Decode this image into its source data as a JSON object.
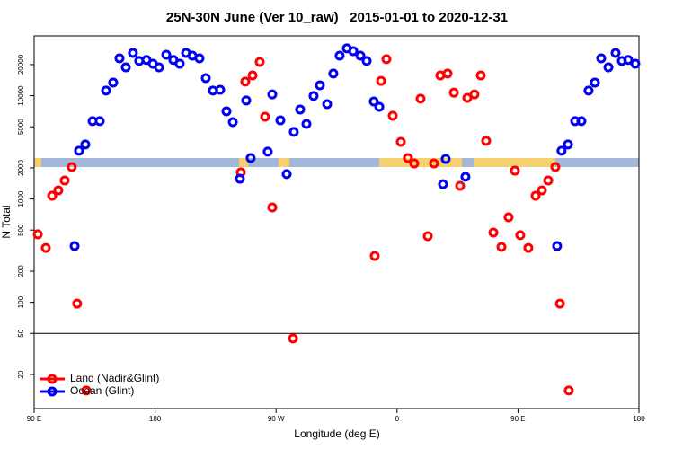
{
  "chart_data": {
    "type": "scatter",
    "title": "25N-30N June (Ver 10_raw)   2015-01-01 to 2020-12-31",
    "x_label": "Longitude (deg E)",
    "y_label": "N Total",
    "log_y": true,
    "xlim": [
      90,
      540
    ],
    "ylim": [
      9.35,
      37900
    ],
    "xticks": [
      {
        "value": 90,
        "label": "90 E"
      },
      180,
      {
        "value": 270,
        "label": "90 W"
      },
      {
        "value": 360,
        "label": "0"
      },
      {
        "value": 450,
        "label": "90 E"
      },
      {
        "value": 540,
        "label": "180"
      }
    ],
    "yticks": [
      20,
      50,
      100,
      200,
      500,
      1000,
      2000,
      5000,
      10000,
      20000
    ],
    "reference_line": 50,
    "legend": "bottom-left",
    "series": [
      {
        "name": "Land (Nadir&Glint)",
        "color": "#ff0000",
        "x": [
          92.7,
          98.7,
          103.4,
          108,
          112.7,
          118,
          122,
          128.8,
          243.8,
          247.1,
          252.5,
          257.8,
          261.8,
          267.2,
          282.6,
          343.4,
          348.1,
          352.1,
          356.8,
          362.8,
          368.1,
          372.8,
          377.5,
          382.9,
          387.5,
          392.2,
          397.6,
          402.3,
          406.9,
          412.3,
          417.6,
          422.3,
          426.3,
          431.7,
          437.7,
          443,
          447.7,
          451.7,
          457.7,
          463.1,
          467.8,
          472.5,
          477.8,
          481.2,
          487.8
        ],
        "values": [
          455,
          336,
          1075,
          1213,
          1510,
          2040,
          97,
          14,
          1810,
          13700,
          15700,
          21200,
          6260,
          828,
          44.6,
          281,
          13900,
          22600,
          6390,
          3570,
          2490,
          2210,
          9350,
          437,
          2210,
          15700,
          16400,
          10700,
          1340,
          9530,
          10300,
          15700,
          3650,
          473,
          343,
          665,
          1880,
          446,
          336,
          1075,
          1213,
          1510,
          2040,
          97,
          14
        ]
      },
      {
        "name": "Ocean (Glint)",
        "color": "#0000ee",
        "x": [
          120.1,
          123.4,
          128.1,
          133.5,
          138.8,
          143.5,
          148.8,
          153.5,
          158.2,
          163.5,
          168.2,
          173.6,
          178.3,
          182.9,
          188.3,
          193.6,
          198.3,
          203,
          207.7,
          213,
          217.7,
          223,
          228.4,
          233.1,
          237.8,
          243.1,
          247.8,
          251.1,
          263.8,
          267.2,
          273.2,
          277.9,
          283.2,
          287.9,
          292.6,
          297.9,
          302.6,
          308,
          312.6,
          317.3,
          322.7,
          327.4,
          332.7,
          337.4,
          342.7,
          346.8,
          394.2,
          396.2,
          410.9,
          479.1,
          482.4,
          487.2,
          492.5,
          497.2,
          502.5,
          507.2,
          511.9,
          517.3,
          522.6,
          527.3,
          532,
          537.3
        ],
        "values": [
          350,
          2930,
          3370,
          5670,
          5670,
          11200,
          13400,
          23000,
          18800,
          25900,
          21700,
          22200,
          20400,
          18800,
          24900,
          22200,
          20400,
          25900,
          24400,
          23000,
          14800,
          11200,
          11400,
          7060,
          5550,
          1570,
          8980,
          2490,
          2870,
          10300,
          5780,
          1740,
          4460,
          7350,
          5330,
          9930,
          12600,
          8280,
          16400,
          24400,
          28700,
          27000,
          24400,
          21700,
          8790,
          7800,
          1390,
          2440,
          1640,
          350,
          2930,
          3370,
          5670,
          5670,
          11200,
          13400,
          23000,
          18800,
          25900,
          21700,
          22200,
          20400
        ]
      }
    ]
  }
}
